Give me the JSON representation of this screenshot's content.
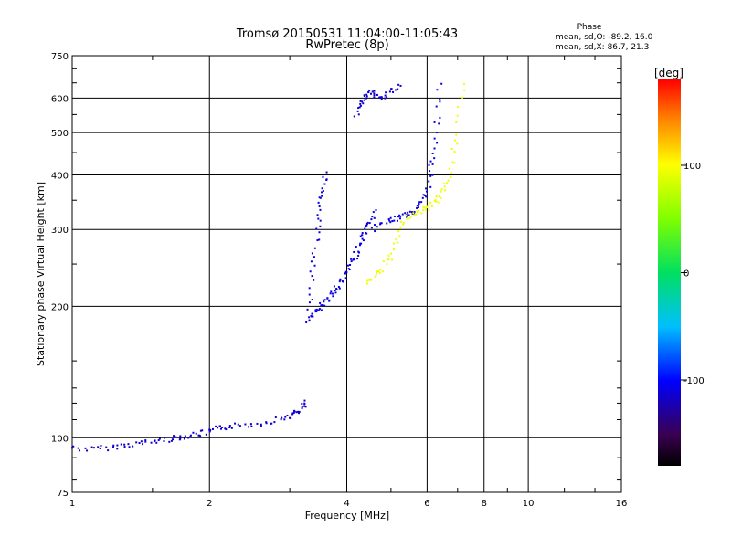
{
  "header": {
    "title_line1": "Tromsø 20150531 11:04:00-11:05:43",
    "title_line2": "RwPretec (8p)",
    "phase_title": "Phase",
    "phase_line1": "mean, sd,O: -89.2, 16.0",
    "phase_line2": "mean, sd,X:  86.7, 21.3"
  },
  "colorbar": {
    "unit": "[deg]",
    "ticks": [
      "100",
      "0",
      "-100"
    ],
    "tick_values": [
      100,
      0,
      -100
    ],
    "range": [
      -180,
      180
    ]
  },
  "chart_data": {
    "type": "scatter",
    "title": "Tromsø 20150531 11:04:00-11:05:43",
    "subtitle": "RwPretec (8p)",
    "xlabel": "Frequency [MHz]",
    "ylabel": "Stationary phase Virtual Height [km]",
    "xscale": "log",
    "yscale": "log",
    "xlim": [
      1,
      16
    ],
    "ylim": [
      75,
      750
    ],
    "xticks": [
      1,
      2,
      4,
      6,
      8,
      10,
      16
    ],
    "xtick_labels": [
      "1",
      "2",
      "4",
      "6",
      "8",
      "10",
      "16"
    ],
    "yticks": [
      75,
      100,
      200,
      300,
      400,
      500,
      600,
      750
    ],
    "ytick_labels": [
      "75",
      "100",
      "200",
      "300",
      "400",
      "500",
      "600",
      "750"
    ],
    "grid": true,
    "color_dimension": "phase [deg]",
    "traces": [
      {
        "kind": "E-layer O",
        "phase": -115,
        "x": [
          1.0,
          1.1,
          1.2,
          1.3,
          1.4,
          1.5,
          1.6,
          1.7,
          1.8,
          1.9,
          2.0,
          2.1,
          2.2,
          2.4,
          2.6,
          2.8,
          3.0,
          3.1,
          3.2,
          3.25
        ],
        "y": [
          95,
          94,
          95,
          96,
          97,
          98,
          99,
          100,
          101,
          102,
          103,
          105,
          106,
          107,
          108,
          110,
          112,
          114,
          117,
          120
        ]
      },
      {
        "kind": "F-layer O lower",
        "phase": -110,
        "x": [
          3.3,
          3.4,
          3.5,
          3.6,
          3.7,
          3.8,
          3.9,
          4.0,
          4.1,
          4.2,
          4.3,
          4.4,
          4.5,
          4.6
        ],
        "y": [
          185,
          192,
          200,
          205,
          213,
          220,
          228,
          238,
          250,
          265,
          280,
          295,
          310,
          330
        ]
      },
      {
        "kind": "F-layer O cusp",
        "phase": -110,
        "x": [
          3.3,
          3.35,
          3.4,
          3.45,
          3.5,
          3.55,
          3.6
        ],
        "y": [
          185,
          220,
          260,
          300,
          340,
          370,
          400
        ]
      },
      {
        "kind": "F-layer O upper",
        "phase": -108,
        "x": [
          4.6,
          4.8,
          5.0,
          5.2,
          5.4,
          5.6,
          5.8,
          6.0,
          6.1,
          6.2,
          6.3,
          6.4
        ],
        "y": [
          300,
          310,
          315,
          320,
          325,
          330,
          340,
          360,
          400,
          450,
          530,
          640
        ]
      },
      {
        "kind": "F-layer O branch",
        "phase": -115,
        "x": [
          4.2,
          4.3,
          4.4,
          4.5,
          4.6,
          4.8,
          5.0,
          5.2
        ],
        "y": [
          550,
          580,
          600,
          620,
          610,
          605,
          620,
          640
        ]
      },
      {
        "kind": "F-layer X",
        "phase": 95,
        "x": [
          4.4,
          4.6,
          4.8,
          5.0,
          5.2,
          5.4,
          5.6,
          5.8,
          6.0,
          6.2,
          6.4,
          6.6,
          6.8,
          7.0,
          7.2
        ],
        "y": [
          225,
          235,
          245,
          260,
          290,
          320,
          325,
          330,
          335,
          345,
          360,
          380,
          420,
          500,
          640
        ]
      }
    ]
  }
}
